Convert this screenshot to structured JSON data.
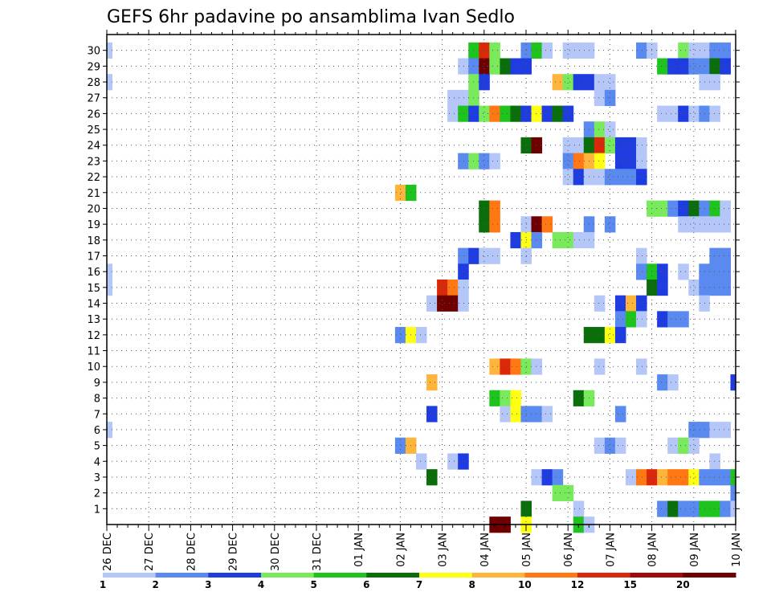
{
  "chart_data": {
    "type": "heatmap",
    "title": "GEFS 6hr padavine po ansamblima Ivan Sedlo",
    "x_labels": [
      "26 DEC",
      "27 DEC",
      "28 DEC",
      "29 DEC",
      "30 DEC",
      "31 DEC",
      "01 JAN",
      "02 JAN",
      "03 JAN",
      "04 JAN",
      "05 JAN",
      "06 JAN",
      "07 JAN",
      "08 JAN",
      "09 JAN",
      "10 JAN"
    ],
    "y_labels": [
      "1",
      "2",
      "3",
      "4",
      "5",
      "6",
      "7",
      "8",
      "9",
      "10",
      "11",
      "12",
      "13",
      "14",
      "15",
      "16",
      "17",
      "18",
      "19",
      "20",
      "21",
      "22",
      "23",
      "24",
      "25",
      "26",
      "27",
      "28",
      "29",
      "30"
    ],
    "x_steps_per_day": 4,
    "time_steps": 61,
    "members": 30,
    "grid": "dotted",
    "colorbar": {
      "labels": [
        "1",
        "2",
        "3",
        "4",
        "5",
        "6",
        "7",
        "8",
        "10",
        "12",
        "15",
        "20"
      ],
      "colors": [
        "#b4c7f8",
        "#5a8af0",
        "#1e3ce0",
        "#78ea5c",
        "#1ec31e",
        "#0a6e0a",
        "#ffff14",
        "#ffb43c",
        "#ff7814",
        "#dc280a",
        "#a00a0a",
        "#6e0000"
      ]
    },
    "cells": [
      [
        0,
        30,
        0
      ],
      [
        35,
        30,
        4
      ],
      [
        36,
        30,
        9
      ],
      [
        37,
        30,
        3
      ],
      [
        40,
        30,
        1
      ],
      [
        41,
        30,
        4
      ],
      [
        42,
        30,
        0
      ],
      [
        44,
        30,
        0
      ],
      [
        45,
        30,
        0
      ],
      [
        46,
        30,
        0
      ],
      [
        51,
        30,
        1
      ],
      [
        52,
        30,
        0
      ],
      [
        55,
        30,
        3
      ],
      [
        56,
        30,
        0
      ],
      [
        57,
        30,
        0
      ],
      [
        58,
        30,
        1
      ],
      [
        59,
        30,
        1
      ],
      [
        34,
        29,
        0
      ],
      [
        35,
        29,
        1
      ],
      [
        36,
        29,
        11
      ],
      [
        37,
        29,
        3
      ],
      [
        38,
        29,
        5
      ],
      [
        39,
        29,
        2
      ],
      [
        40,
        29,
        2
      ],
      [
        53,
        29,
        4
      ],
      [
        54,
        29,
        2
      ],
      [
        55,
        29,
        2
      ],
      [
        56,
        29,
        1
      ],
      [
        57,
        29,
        1
      ],
      [
        58,
        29,
        5
      ],
      [
        59,
        29,
        2
      ],
      [
        0,
        28,
        0
      ],
      [
        35,
        28,
        3
      ],
      [
        36,
        28,
        2
      ],
      [
        43,
        28,
        7
      ],
      [
        44,
        28,
        3
      ],
      [
        45,
        28,
        2
      ],
      [
        46,
        28,
        2
      ],
      [
        47,
        28,
        0
      ],
      [
        48,
        28,
        0
      ],
      [
        57,
        28,
        0
      ],
      [
        58,
        28,
        0
      ],
      [
        33,
        27,
        0
      ],
      [
        34,
        27,
        0
      ],
      [
        35,
        27,
        3
      ],
      [
        47,
        27,
        0
      ],
      [
        48,
        27,
        1
      ],
      [
        33,
        26,
        0
      ],
      [
        34,
        26,
        4
      ],
      [
        35,
        26,
        2
      ],
      [
        36,
        26,
        3
      ],
      [
        37,
        26,
        8
      ],
      [
        38,
        26,
        4
      ],
      [
        39,
        26,
        5
      ],
      [
        40,
        26,
        2
      ],
      [
        41,
        26,
        6
      ],
      [
        42,
        26,
        2
      ],
      [
        43,
        26,
        5
      ],
      [
        44,
        26,
        2
      ],
      [
        53,
        26,
        0
      ],
      [
        54,
        26,
        0
      ],
      [
        55,
        26,
        2
      ],
      [
        56,
        26,
        0
      ],
      [
        57,
        26,
        1
      ],
      [
        58,
        26,
        0
      ],
      [
        46,
        25,
        1
      ],
      [
        47,
        25,
        3
      ],
      [
        48,
        25,
        0
      ],
      [
        40,
        24,
        5
      ],
      [
        41,
        24,
        11
      ],
      [
        44,
        24,
        0
      ],
      [
        45,
        24,
        0
      ],
      [
        46,
        24,
        5
      ],
      [
        47,
        24,
        9
      ],
      [
        48,
        24,
        3
      ],
      [
        49,
        24,
        2
      ],
      [
        50,
        24,
        2
      ],
      [
        51,
        24,
        0
      ],
      [
        34,
        23,
        1
      ],
      [
        35,
        23,
        3
      ],
      [
        36,
        23,
        1
      ],
      [
        37,
        23,
        0
      ],
      [
        44,
        23,
        1
      ],
      [
        45,
        23,
        8
      ],
      [
        46,
        23,
        7
      ],
      [
        47,
        23,
        6
      ],
      [
        49,
        23,
        2
      ],
      [
        50,
        23,
        2
      ],
      [
        51,
        23,
        0
      ],
      [
        44,
        22,
        0
      ],
      [
        45,
        22,
        2
      ],
      [
        46,
        22,
        0
      ],
      [
        47,
        22,
        0
      ],
      [
        48,
        22,
        1
      ],
      [
        49,
        22,
        1
      ],
      [
        50,
        22,
        1
      ],
      [
        51,
        22,
        2
      ],
      [
        28,
        21,
        7
      ],
      [
        29,
        21,
        4
      ],
      [
        36,
        20,
        5
      ],
      [
        37,
        20,
        8
      ],
      [
        52,
        20,
        3
      ],
      [
        53,
        20,
        3
      ],
      [
        54,
        20,
        1
      ],
      [
        55,
        20,
        2
      ],
      [
        56,
        20,
        5
      ],
      [
        57,
        20,
        1
      ],
      [
        58,
        20,
        4
      ],
      [
        59,
        20,
        0
      ],
      [
        36,
        19,
        5
      ],
      [
        37,
        19,
        8
      ],
      [
        40,
        19,
        0
      ],
      [
        41,
        19,
        11
      ],
      [
        42,
        19,
        8
      ],
      [
        46,
        19,
        1
      ],
      [
        48,
        19,
        1
      ],
      [
        55,
        19,
        0
      ],
      [
        56,
        19,
        0
      ],
      [
        57,
        19,
        0
      ],
      [
        58,
        19,
        0
      ],
      [
        59,
        19,
        0
      ],
      [
        39,
        18,
        2
      ],
      [
        40,
        18,
        6
      ],
      [
        41,
        18,
        1
      ],
      [
        43,
        18,
        3
      ],
      [
        44,
        18,
        3
      ],
      [
        45,
        18,
        0
      ],
      [
        46,
        18,
        0
      ],
      [
        34,
        17,
        1
      ],
      [
        35,
        17,
        2
      ],
      [
        36,
        17,
        0
      ],
      [
        37,
        17,
        0
      ],
      [
        40,
        17,
        0
      ],
      [
        51,
        17,
        0
      ],
      [
        58,
        17,
        1
      ],
      [
        59,
        17,
        1
      ],
      [
        0,
        16,
        0
      ],
      [
        34,
        16,
        2
      ],
      [
        51,
        16,
        1
      ],
      [
        52,
        16,
        4
      ],
      [
        53,
        16,
        2
      ],
      [
        55,
        16,
        0
      ],
      [
        57,
        16,
        1
      ],
      [
        58,
        16,
        1
      ],
      [
        59,
        16,
        1
      ],
      [
        0,
        15,
        0
      ],
      [
        32,
        15,
        9
      ],
      [
        33,
        15,
        8
      ],
      [
        34,
        15,
        0
      ],
      [
        52,
        15,
        5
      ],
      [
        53,
        15,
        2
      ],
      [
        56,
        15,
        0
      ],
      [
        57,
        15,
        1
      ],
      [
        58,
        15,
        1
      ],
      [
        59,
        15,
        1
      ],
      [
        31,
        14,
        0
      ],
      [
        32,
        14,
        11
      ],
      [
        33,
        14,
        11
      ],
      [
        34,
        14,
        0
      ],
      [
        47,
        14,
        0
      ],
      [
        49,
        14,
        2
      ],
      [
        50,
        14,
        7
      ],
      [
        51,
        14,
        2
      ],
      [
        57,
        14,
        0
      ],
      [
        49,
        13,
        1
      ],
      [
        50,
        13,
        4
      ],
      [
        51,
        13,
        0
      ],
      [
        53,
        13,
        2
      ],
      [
        54,
        13,
        1
      ],
      [
        55,
        13,
        1
      ],
      [
        28,
        12,
        1
      ],
      [
        29,
        12,
        6
      ],
      [
        30,
        12,
        0
      ],
      [
        46,
        12,
        5
      ],
      [
        47,
        12,
        5
      ],
      [
        48,
        12,
        6
      ],
      [
        49,
        12,
        2
      ],
      [
        37,
        10,
        7
      ],
      [
        38,
        10,
        9
      ],
      [
        39,
        10,
        8
      ],
      [
        40,
        10,
        3
      ],
      [
        41,
        10,
        0
      ],
      [
        47,
        10,
        0
      ],
      [
        51,
        10,
        0
      ],
      [
        31,
        9,
        7
      ],
      [
        53,
        9,
        1
      ],
      [
        54,
        9,
        0
      ],
      [
        60,
        9,
        2
      ],
      [
        37,
        8,
        4
      ],
      [
        38,
        8,
        3
      ],
      [
        39,
        8,
        6
      ],
      [
        45,
        8,
        5
      ],
      [
        46,
        8,
        3
      ],
      [
        31,
        7,
        2
      ],
      [
        38,
        7,
        0
      ],
      [
        39,
        7,
        6
      ],
      [
        40,
        7,
        1
      ],
      [
        41,
        7,
        1
      ],
      [
        42,
        7,
        0
      ],
      [
        49,
        7,
        1
      ],
      [
        0,
        6,
        0
      ],
      [
        56,
        6,
        1
      ],
      [
        57,
        6,
        1
      ],
      [
        58,
        6,
        0
      ],
      [
        59,
        6,
        0
      ],
      [
        28,
        5,
        1
      ],
      [
        29,
        5,
        7
      ],
      [
        47,
        5,
        0
      ],
      [
        48,
        5,
        1
      ],
      [
        49,
        5,
        0
      ],
      [
        54,
        5,
        0
      ],
      [
        55,
        5,
        3
      ],
      [
        56,
        5,
        0
      ],
      [
        30,
        4,
        0
      ],
      [
        33,
        4,
        0
      ],
      [
        34,
        4,
        2
      ],
      [
        58,
        4,
        0
      ],
      [
        31,
        3,
        5
      ],
      [
        41,
        3,
        0
      ],
      [
        42,
        3,
        2
      ],
      [
        43,
        3,
        1
      ],
      [
        50,
        3,
        0
      ],
      [
        51,
        3,
        8
      ],
      [
        52,
        3,
        9
      ],
      [
        53,
        3,
        7
      ],
      [
        54,
        3,
        8
      ],
      [
        55,
        3,
        8
      ],
      [
        56,
        3,
        6
      ],
      [
        57,
        3,
        1
      ],
      [
        58,
        3,
        1
      ],
      [
        59,
        3,
        1
      ],
      [
        60,
        3,
        4
      ],
      [
        43,
        2,
        3
      ],
      [
        44,
        2,
        3
      ],
      [
        60,
        2,
        1
      ],
      [
        40,
        1,
        5
      ],
      [
        45,
        1,
        0
      ],
      [
        53,
        1,
        1
      ],
      [
        54,
        1,
        5
      ],
      [
        55,
        1,
        1
      ],
      [
        56,
        1,
        1
      ],
      [
        57,
        1,
        4
      ],
      [
        58,
        1,
        4
      ],
      [
        59,
        1,
        1
      ],
      [
        60,
        1,
        0
      ],
      [
        37,
        0,
        11
      ],
      [
        38,
        0,
        11
      ],
      [
        40,
        0,
        6
      ],
      [
        45,
        0,
        4
      ],
      [
        46,
        0,
        0
      ]
    ]
  }
}
